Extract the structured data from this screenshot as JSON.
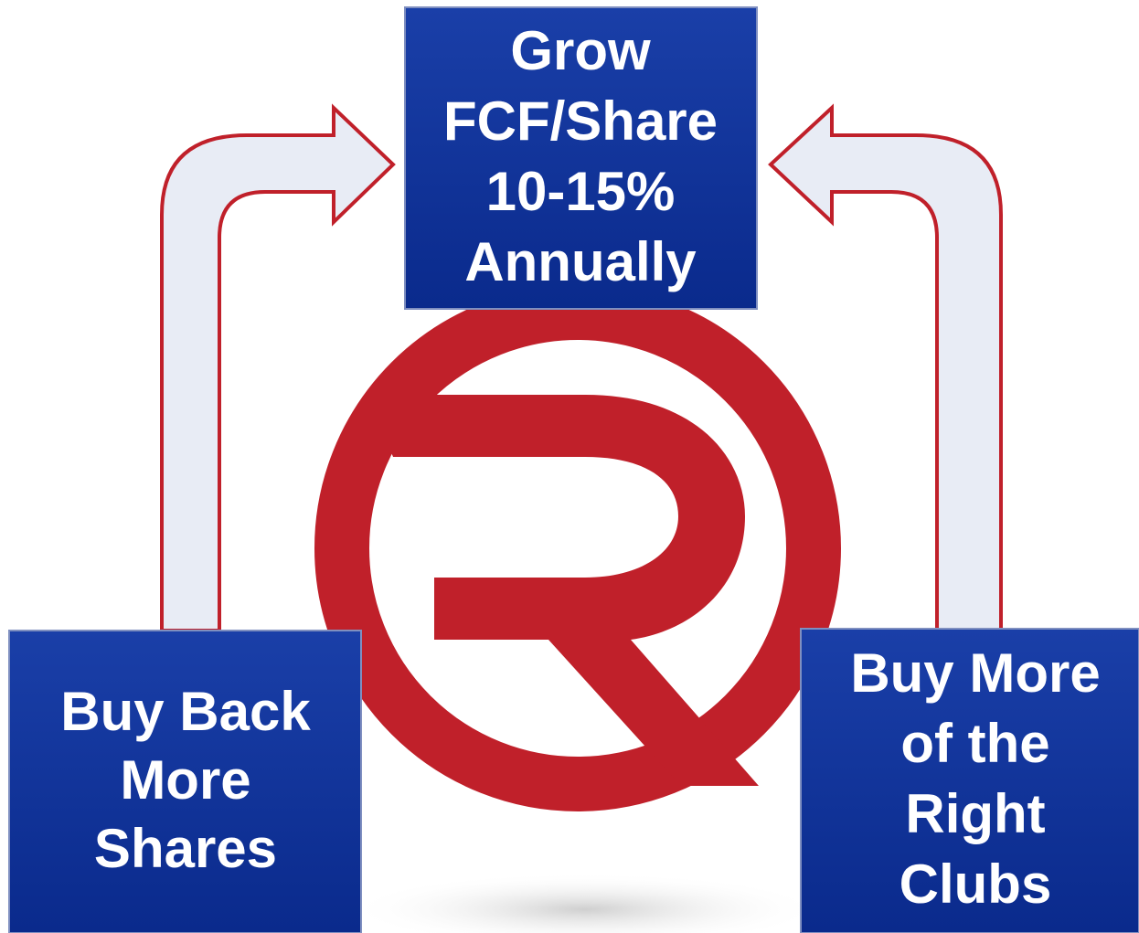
{
  "boxes": {
    "top": {
      "lines": [
        "Grow",
        "FCF/Share",
        "10-15%",
        "Annually"
      ]
    },
    "left": {
      "lines": [
        "Buy Back",
        "More",
        "Shares"
      ]
    },
    "right": {
      "lines": [
        "Buy More",
        "of the",
        "Right",
        "Clubs"
      ]
    }
  }
}
